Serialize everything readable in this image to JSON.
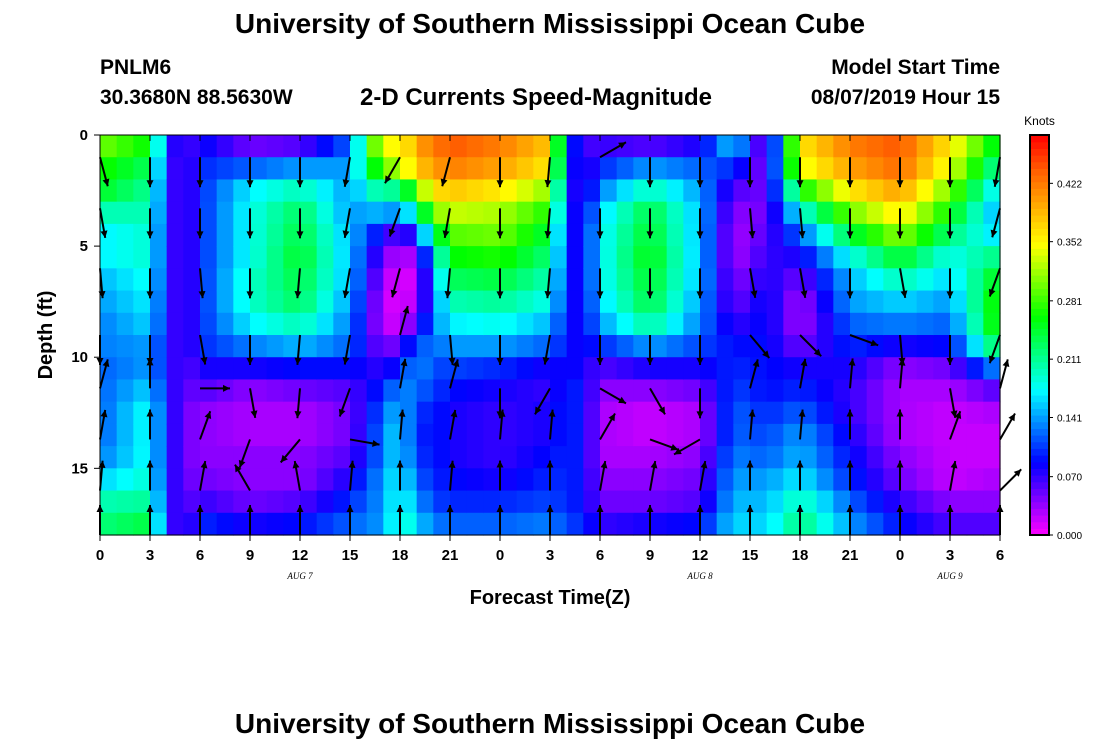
{
  "page": {
    "title_top": "University of Southern Mississippi Ocean Cube",
    "title_bottom": "University of Southern Mississippi Ocean Cube",
    "station_id": "PNLM6",
    "station_coords": "30.3680N 88.5630W",
    "subtitle": "2-D Currents Speed-Magnitude",
    "model_label": "Model Start Time",
    "model_time": "08/07/2019 Hour 15"
  },
  "chart_data": {
    "type": "heatmap",
    "title": "2-D Currents Speed-Magnitude",
    "xlabel": "Forecast Time(Z)",
    "ylabel": "Depth (ft)",
    "x_range_hours": [
      0,
      54
    ],
    "y_range_ft": [
      0,
      18
    ],
    "x_ticks": [
      {
        "h": 0,
        "label": "0"
      },
      {
        "h": 3,
        "label": "3"
      },
      {
        "h": 6,
        "label": "6"
      },
      {
        "h": 9,
        "label": "9"
      },
      {
        "h": 12,
        "label": "12"
      },
      {
        "h": 15,
        "label": "15"
      },
      {
        "h": 18,
        "label": "18"
      },
      {
        "h": 21,
        "label": "21"
      },
      {
        "h": 24,
        "label": "0"
      },
      {
        "h": 27,
        "label": "3"
      },
      {
        "h": 30,
        "label": "6"
      },
      {
        "h": 33,
        "label": "9"
      },
      {
        "h": 36,
        "label": "12"
      },
      {
        "h": 39,
        "label": "15"
      },
      {
        "h": 42,
        "label": "18"
      },
      {
        "h": 45,
        "label": "21"
      },
      {
        "h": 48,
        "label": "0"
      },
      {
        "h": 51,
        "label": "3"
      },
      {
        "h": 54,
        "label": "6"
      }
    ],
    "day_labels": [
      {
        "h": 12,
        "label": "AUG  7"
      },
      {
        "h": 36,
        "label": "AUG  8"
      },
      {
        "h": 51,
        "label": "AUG  9"
      }
    ],
    "y_ticks": [
      {
        "v": 0,
        "label": "0"
      },
      {
        "v": 5,
        "label": "5"
      },
      {
        "v": 10,
        "label": "10"
      },
      {
        "v": 15,
        "label": "15"
      }
    ],
    "colorbar": {
      "unit": "Knots",
      "min": 0.0,
      "max": 0.48,
      "labels": [
        "0.422",
        "0.352",
        "0.281",
        "0.211",
        "0.141",
        "0.070",
        "0.000"
      ],
      "label_values": [
        0.422,
        0.352,
        0.281,
        0.211,
        0.141,
        0.07,
        0.0
      ],
      "colors": [
        "#ff00ff",
        "#8000ff",
        "#0000ff",
        "#0080ff",
        "#00ffff",
        "#00ff80",
        "#00ff00",
        "#80ff00",
        "#ffff00",
        "#ffb000",
        "#ff6000",
        "#ff0000"
      ]
    },
    "depth_rows_ft": [
      0.5,
      1.5,
      2.5,
      3.5,
      4.5,
      5.5,
      6.5,
      7.5,
      8.5,
      9.5,
      10.5,
      11.5,
      12.5,
      13.5,
      14.5,
      15.5,
      16.5,
      17.5
    ],
    "speed_by_hour": {
      "hours": [
        0,
        3,
        4,
        5,
        6,
        9,
        12,
        15,
        17,
        18,
        19,
        20,
        21,
        24,
        27,
        28,
        29,
        30,
        33,
        36,
        38,
        40,
        42,
        45,
        48,
        51,
        54
      ],
      "speed": [
        [
          0.3,
          0.27,
          0.25,
          0.2,
          0.17,
          0.17,
          0.15,
          0.14,
          0.13,
          0.13,
          0.12,
          0.12,
          0.12,
          0.12,
          0.13,
          0.16,
          0.2,
          0.22
        ],
        [
          0.26,
          0.23,
          0.21,
          0.2,
          0.19,
          0.19,
          0.18,
          0.17,
          0.16,
          0.14,
          0.14,
          0.16,
          0.18,
          0.18,
          0.18,
          0.19,
          0.21,
          0.24
        ],
        [
          0.1,
          0.09,
          0.09,
          0.09,
          0.09,
          0.09,
          0.09,
          0.09,
          0.09,
          0.09,
          0.09,
          0.09,
          0.09,
          0.09,
          0.09,
          0.09,
          0.09,
          0.09
        ],
        [
          0.05,
          0.05,
          0.05,
          0.05,
          0.05,
          0.05,
          0.05,
          0.05,
          0.05,
          0.05,
          0.05,
          0.05,
          0.05,
          0.05,
          0.05,
          0.05,
          0.05,
          0.05
        ],
        [
          0.09,
          0.1,
          0.1,
          0.1,
          0.1,
          0.1,
          0.1,
          0.1,
          0.1,
          0.1,
          0.08,
          0.06,
          0.04,
          0.04,
          0.04,
          0.05,
          0.07,
          0.1
        ],
        [
          0.05,
          0.12,
          0.17,
          0.18,
          0.18,
          0.18,
          0.19,
          0.19,
          0.17,
          0.13,
          0.08,
          0.04,
          0.03,
          0.03,
          0.04,
          0.04,
          0.05,
          0.08
        ],
        [
          0.06,
          0.14,
          0.2,
          0.23,
          0.24,
          0.25,
          0.24,
          0.23,
          0.2,
          0.15,
          0.09,
          0.05,
          0.03,
          0.03,
          0.04,
          0.04,
          0.06,
          0.09
        ],
        [
          0.12,
          0.14,
          0.14,
          0.14,
          0.15,
          0.15,
          0.15,
          0.14,
          0.13,
          0.12,
          0.09,
          0.06,
          0.05,
          0.05,
          0.06,
          0.08,
          0.1,
          0.12
        ],
        [
          0.36,
          0.3,
          0.22,
          0.15,
          0.08,
          0.05,
          0.03,
          0.02,
          0.02,
          0.04,
          0.07,
          0.1,
          0.12,
          0.13,
          0.13,
          0.14,
          0.14,
          0.14
        ],
        [
          0.34,
          0.32,
          0.2,
          0.13,
          0.05,
          0.02,
          0.01,
          0.01,
          0.02,
          0.06,
          0.1,
          0.14,
          0.16,
          0.17,
          0.17,
          0.18,
          0.19,
          0.2
        ],
        [
          0.4,
          0.38,
          0.3,
          0.2,
          0.1,
          0.04,
          0.02,
          0.03,
          0.06,
          0.12,
          0.14,
          0.12,
          0.1,
          0.09,
          0.1,
          0.12,
          0.14,
          0.16
        ],
        [
          0.42,
          0.4,
          0.36,
          0.3,
          0.22,
          0.16,
          0.13,
          0.12,
          0.13,
          0.12,
          0.11,
          0.11,
          0.1,
          0.1,
          0.1,
          0.1,
          0.11,
          0.13
        ],
        [
          0.44,
          0.42,
          0.38,
          0.33,
          0.29,
          0.26,
          0.23,
          0.2,
          0.17,
          0.14,
          0.11,
          0.09,
          0.08,
          0.08,
          0.08,
          0.09,
          0.1,
          0.12
        ],
        [
          0.42,
          0.4,
          0.36,
          0.32,
          0.3,
          0.27,
          0.24,
          0.21,
          0.18,
          0.14,
          0.1,
          0.08,
          0.07,
          0.07,
          0.07,
          0.08,
          0.1,
          0.12
        ],
        [
          0.38,
          0.36,
          0.31,
          0.27,
          0.24,
          0.22,
          0.2,
          0.18,
          0.15,
          0.12,
          0.08,
          0.07,
          0.08,
          0.08,
          0.09,
          0.1,
          0.11,
          0.13
        ],
        [
          0.12,
          0.11,
          0.1,
          0.1,
          0.09,
          0.09,
          0.09,
          0.09,
          0.09,
          0.09,
          0.09,
          0.1,
          0.1,
          0.1,
          0.1,
          0.1,
          0.1,
          0.11
        ],
        [
          0.06,
          0.06,
          0.06,
          0.07,
          0.08,
          0.08,
          0.08,
          0.08,
          0.08,
          0.08,
          0.08,
          0.09,
          0.09,
          0.09,
          0.09,
          0.09,
          0.09,
          0.1
        ],
        [
          0.07,
          0.1,
          0.13,
          0.16,
          0.17,
          0.17,
          0.17,
          0.16,
          0.14,
          0.1,
          0.06,
          0.04,
          0.03,
          0.03,
          0.03,
          0.04,
          0.05,
          0.07
        ],
        [
          0.06,
          0.14,
          0.2,
          0.24,
          0.25,
          0.26,
          0.25,
          0.24,
          0.21,
          0.14,
          0.08,
          0.04,
          0.02,
          0.02,
          0.03,
          0.04,
          0.05,
          0.08
        ],
        [
          0.08,
          0.12,
          0.14,
          0.15,
          0.15,
          0.15,
          0.15,
          0.14,
          0.13,
          0.11,
          0.08,
          0.05,
          0.03,
          0.03,
          0.04,
          0.05,
          0.06,
          0.09
        ],
        [
          0.16,
          0.1,
          0.06,
          0.04,
          0.03,
          0.03,
          0.04,
          0.05,
          0.07,
          0.09,
          0.1,
          0.11,
          0.12,
          0.12,
          0.13,
          0.14,
          0.15,
          0.16
        ],
        [
          0.03,
          0.04,
          0.05,
          0.05,
          0.06,
          0.07,
          0.08,
          0.09,
          0.09,
          0.09,
          0.09,
          0.09,
          0.1,
          0.11,
          0.12,
          0.14,
          0.15,
          0.16
        ],
        [
          0.36,
          0.34,
          0.26,
          0.18,
          0.12,
          0.08,
          0.05,
          0.03,
          0.03,
          0.05,
          0.08,
          0.1,
          0.12,
          0.14,
          0.15,
          0.17,
          0.2,
          0.22
        ],
        [
          0.42,
          0.4,
          0.36,
          0.3,
          0.24,
          0.18,
          0.15,
          0.14,
          0.12,
          0.1,
          0.08,
          0.07,
          0.07,
          0.08,
          0.09,
          0.1,
          0.12,
          0.14
        ],
        [
          0.44,
          0.43,
          0.4,
          0.36,
          0.31,
          0.25,
          0.2,
          0.16,
          0.13,
          0.08,
          0.04,
          0.03,
          0.03,
          0.03,
          0.04,
          0.05,
          0.07,
          0.09
        ],
        [
          0.36,
          0.34,
          0.3,
          0.26,
          0.22,
          0.18,
          0.16,
          0.14,
          0.12,
          0.09,
          0.05,
          0.03,
          0.02,
          0.02,
          0.02,
          0.02,
          0.04,
          0.06
        ],
        [
          0.24,
          0.2,
          0.16,
          0.14,
          0.16,
          0.22,
          0.26,
          0.28,
          0.28,
          0.24,
          0.14,
          0.06,
          0.03,
          0.02,
          0.02,
          0.03,
          0.04,
          0.06
        ]
      ]
    },
    "arrows_by_hour": {
      "hours": [
        0,
        3,
        6,
        9,
        12,
        15,
        18,
        21,
        24,
        27,
        30,
        33,
        36,
        39,
        42,
        45,
        48,
        51,
        54
      ],
      "depths_ft": [
        1,
        3.3,
        6,
        9,
        11.4,
        13.7,
        16,
        18
      ],
      "angle_deg": [
        [
          165,
          170,
          175,
          180,
          15,
          10,
          5,
          0
        ],
        [
          180,
          180,
          180,
          180,
          0,
          0,
          0,
          0
        ],
        [
          180,
          180,
          175,
          170,
          90,
          20,
          10,
          0
        ],
        [
          180,
          180,
          180,
          180,
          170,
          200,
          330,
          0
        ],
        [
          180,
          180,
          185,
          185,
          185,
          220,
          350,
          0
        ],
        [
          190,
          190,
          190,
          190,
          200,
          100,
          5,
          0
        ],
        [
          210,
          200,
          195,
          15,
          10,
          5,
          0,
          0
        ],
        [
          195,
          190,
          185,
          175,
          15,
          10,
          5,
          0
        ],
        [
          180,
          180,
          180,
          180,
          180,
          5,
          0,
          0
        ],
        [
          185,
          185,
          185,
          190,
          210,
          5,
          0,
          0
        ],
        [
          60,
          180,
          180,
          180,
          120,
          30,
          10,
          0
        ],
        [
          180,
          180,
          180,
          180,
          150,
          110,
          10,
          0
        ],
        [
          180,
          180,
          180,
          180,
          180,
          240,
          10,
          0
        ],
        [
          180,
          175,
          170,
          140,
          15,
          5,
          0,
          0
        ],
        [
          180,
          175,
          170,
          135,
          10,
          5,
          0,
          0
        ],
        [
          180,
          180,
          180,
          110,
          5,
          0,
          0,
          0
        ],
        [
          180,
          180,
          170,
          175,
          5,
          0,
          0,
          0
        ],
        [
          180,
          180,
          180,
          180,
          170,
          20,
          10,
          0
        ],
        [
          190,
          195,
          200,
          200,
          15,
          30,
          45,
          0
        ]
      ]
    }
  }
}
